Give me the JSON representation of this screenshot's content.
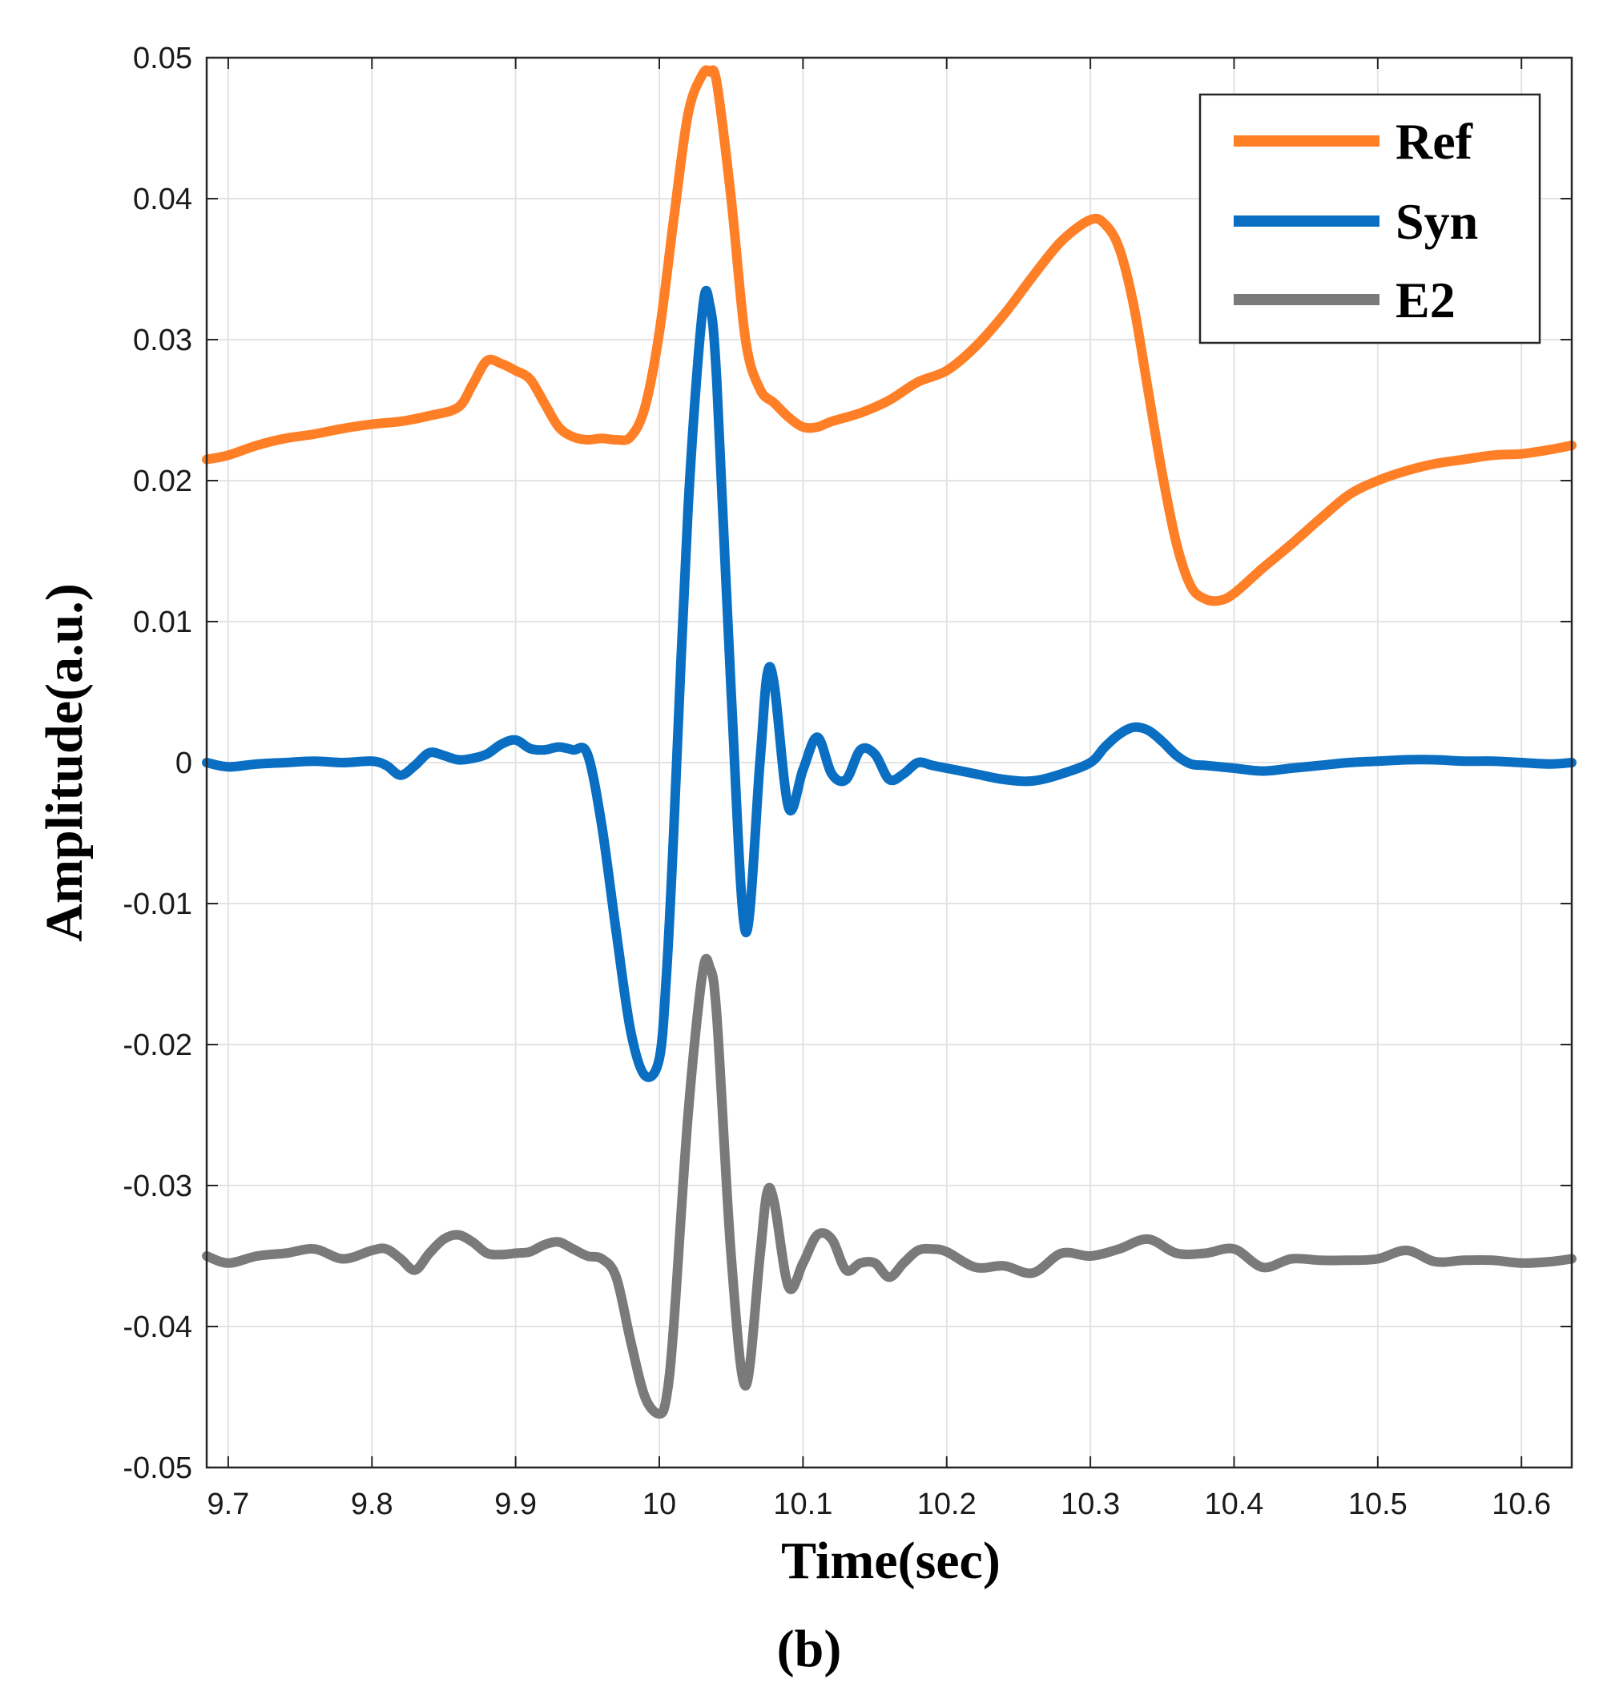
{
  "chart_data": {
    "type": "line",
    "title": "",
    "xlabel": "Time(sec)",
    "ylabel": "Amplitude(a.u.)",
    "caption": "(b)",
    "xlim": [
      9.685,
      10.635
    ],
    "ylim": [
      -0.05,
      0.05
    ],
    "xticks": [
      9.7,
      9.8,
      9.9,
      10.0,
      10.1,
      10.2,
      10.3,
      10.4,
      10.5,
      10.6
    ],
    "xtick_labels": [
      "9.7",
      "9.8",
      "9.9",
      "10",
      "10.1",
      "10.2",
      "10.3",
      "10.4",
      "10.5",
      "10.6"
    ],
    "yticks": [
      0.05,
      0.04,
      0.03,
      0.02,
      0.01,
      0,
      -0.01,
      -0.02,
      -0.03,
      -0.04,
      -0.05
    ],
    "ytick_labels": [
      "0.05",
      "0.04",
      "0.03",
      "0.02",
      "0.01",
      "0",
      "-0.01",
      "-0.02",
      "-0.03",
      "-0.04",
      "-0.05"
    ],
    "grid": true,
    "legend_position": "top-right",
    "series": [
      {
        "name": "Ref",
        "color": "#ff7f27",
        "x": [
          9.685,
          9.7,
          9.72,
          9.74,
          9.76,
          9.78,
          9.8,
          9.82,
          9.84,
          9.86,
          9.87,
          9.88,
          9.89,
          9.9,
          9.91,
          9.92,
          9.93,
          9.94,
          9.95,
          9.96,
          9.97,
          9.98,
          9.99,
          10.0,
          10.01,
          10.02,
          10.03,
          10.035,
          10.04,
          10.05,
          10.06,
          10.07,
          10.08,
          10.09,
          10.1,
          10.11,
          10.12,
          10.14,
          10.16,
          10.18,
          10.2,
          10.22,
          10.24,
          10.26,
          10.28,
          10.3,
          10.31,
          10.32,
          10.33,
          10.34,
          10.35,
          10.36,
          10.37,
          10.38,
          10.39,
          10.4,
          10.42,
          10.44,
          10.46,
          10.48,
          10.5,
          10.52,
          10.54,
          10.56,
          10.58,
          10.6,
          10.62,
          10.635
        ],
        "y": [
          0.0215,
          0.0218,
          0.0225,
          0.023,
          0.0233,
          0.0237,
          0.024,
          0.0242,
          0.0246,
          0.0252,
          0.0268,
          0.0285,
          0.0283,
          0.0278,
          0.0272,
          0.0255,
          0.0238,
          0.0231,
          0.0229,
          0.023,
          0.0229,
          0.0231,
          0.0252,
          0.0305,
          0.0385,
          0.046,
          0.0488,
          0.049,
          0.0482,
          0.04,
          0.03,
          0.0265,
          0.0255,
          0.0245,
          0.0238,
          0.0238,
          0.0242,
          0.0248,
          0.0257,
          0.027,
          0.0278,
          0.0295,
          0.0318,
          0.0345,
          0.037,
          0.0385,
          0.0382,
          0.0365,
          0.0325,
          0.0265,
          0.0205,
          0.0155,
          0.0125,
          0.0116,
          0.0115,
          0.012,
          0.0138,
          0.0155,
          0.0173,
          0.019,
          0.02,
          0.0207,
          0.0212,
          0.0215,
          0.0218,
          0.0219,
          0.0222,
          0.0225
        ]
      },
      {
        "name": "Syn",
        "color": "#0a6fc2",
        "x": [
          9.685,
          9.7,
          9.72,
          9.74,
          9.76,
          9.78,
          9.8,
          9.81,
          9.82,
          9.83,
          9.84,
          9.85,
          9.86,
          9.87,
          9.88,
          9.89,
          9.9,
          9.91,
          9.92,
          9.93,
          9.94,
          9.95,
          9.96,
          9.97,
          9.98,
          9.99,
          10.0,
          10.005,
          10.01,
          10.02,
          10.03,
          10.035,
          10.04,
          10.05,
          10.06,
          10.07,
          10.075,
          10.08,
          10.09,
          10.1,
          10.11,
          10.12,
          10.13,
          10.14,
          10.15,
          10.16,
          10.17,
          10.18,
          10.19,
          10.2,
          10.22,
          10.24,
          10.26,
          10.28,
          10.3,
          10.31,
          10.32,
          10.33,
          10.34,
          10.35,
          10.36,
          10.37,
          10.38,
          10.4,
          10.42,
          10.44,
          10.46,
          10.48,
          10.5,
          10.52,
          10.54,
          10.56,
          10.58,
          10.6,
          10.62,
          10.635
        ],
        "y": [
          0.0,
          -0.0003,
          -0.0001,
          0.0,
          0.0001,
          0.0,
          0.0001,
          -0.0002,
          -0.0009,
          -0.0002,
          0.0007,
          0.0005,
          0.0002,
          0.0003,
          0.0006,
          0.0013,
          0.0016,
          0.001,
          0.0009,
          0.0011,
          0.0009,
          0.0006,
          -0.0045,
          -0.012,
          -0.019,
          -0.0222,
          -0.021,
          -0.015,
          -0.005,
          0.018,
          0.032,
          0.0325,
          0.027,
          0.005,
          -0.012,
          0.0,
          0.0062,
          0.0055,
          -0.0032,
          -0.0005,
          0.0018,
          -0.0008,
          -0.0012,
          0.0009,
          0.0006,
          -0.0012,
          -0.0008,
          0.0,
          -0.0002,
          -0.0004,
          -0.0008,
          -0.0012,
          -0.0013,
          -0.0008,
          0.0,
          0.0011,
          0.002,
          0.0025,
          0.0023,
          0.0015,
          0.0005,
          -0.0001,
          -0.0002,
          -0.0004,
          -0.0006,
          -0.0004,
          -0.0002,
          0.0,
          0.0001,
          0.0002,
          0.0002,
          0.0001,
          0.0001,
          0.0,
          -0.0001,
          0.0
        ]
      },
      {
        "name": "E2",
        "color": "#7a7a7a",
        "x": [
          9.685,
          9.7,
          9.72,
          9.74,
          9.76,
          9.78,
          9.8,
          9.81,
          9.82,
          9.83,
          9.84,
          9.85,
          9.86,
          9.87,
          9.88,
          9.89,
          9.9,
          9.91,
          9.92,
          9.93,
          9.94,
          9.95,
          9.96,
          9.97,
          9.98,
          9.99,
          10.0,
          10.005,
          10.01,
          10.02,
          10.03,
          10.035,
          10.04,
          10.05,
          10.06,
          10.07,
          10.075,
          10.08,
          10.09,
          10.1,
          10.11,
          10.12,
          10.13,
          10.14,
          10.15,
          10.16,
          10.17,
          10.18,
          10.19,
          10.2,
          10.22,
          10.24,
          10.26,
          10.28,
          10.3,
          10.32,
          10.34,
          10.36,
          10.38,
          10.4,
          10.42,
          10.44,
          10.46,
          10.48,
          10.5,
          10.52,
          10.54,
          10.56,
          10.58,
          10.6,
          10.62,
          10.635
        ],
        "y": [
          -0.035,
          -0.0355,
          -0.035,
          -0.0348,
          -0.0345,
          -0.0352,
          -0.0346,
          -0.0345,
          -0.0352,
          -0.036,
          -0.0348,
          -0.0338,
          -0.0335,
          -0.034,
          -0.0348,
          -0.0349,
          -0.0348,
          -0.0347,
          -0.0342,
          -0.034,
          -0.0345,
          -0.035,
          -0.0352,
          -0.0365,
          -0.041,
          -0.045,
          -0.0462,
          -0.045,
          -0.04,
          -0.025,
          -0.015,
          -0.0145,
          -0.018,
          -0.035,
          -0.0442,
          -0.035,
          -0.0305,
          -0.0312,
          -0.0372,
          -0.0355,
          -0.0335,
          -0.0338,
          -0.036,
          -0.0355,
          -0.0355,
          -0.0365,
          -0.0355,
          -0.0346,
          -0.0345,
          -0.0347,
          -0.0358,
          -0.0357,
          -0.0362,
          -0.0348,
          -0.035,
          -0.0345,
          -0.0338,
          -0.0348,
          -0.0348,
          -0.0345,
          -0.0358,
          -0.0352,
          -0.0353,
          -0.0353,
          -0.0352,
          -0.0346,
          -0.0354,
          -0.0353,
          -0.0353,
          -0.0355,
          -0.0354,
          -0.0352
        ]
      }
    ]
  }
}
